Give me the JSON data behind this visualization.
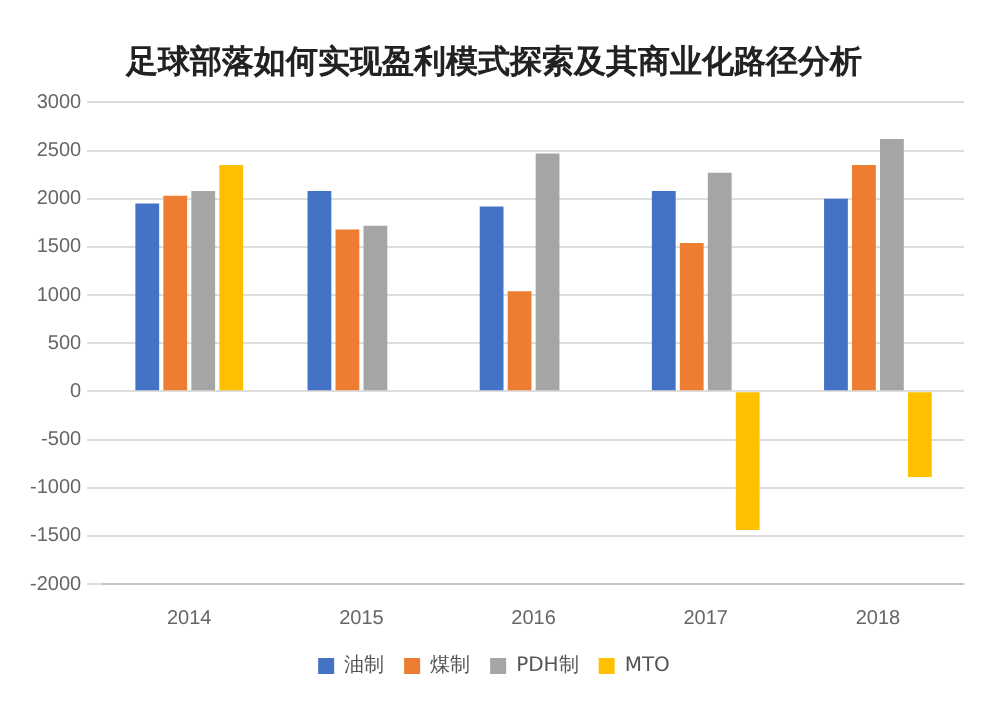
{
  "chart_data": {
    "type": "bar",
    "title": "足球部落如何实现盈利模式探索及其商业化路径分析",
    "categories": [
      "2014",
      "2015",
      "2016",
      "2017",
      "2018"
    ],
    "series": [
      {
        "name": "油制",
        "color": "#4472c4",
        "values": [
          1950,
          2080,
          1920,
          2080,
          2000
        ]
      },
      {
        "name": "煤制",
        "color": "#ed7d31",
        "values": [
          2030,
          1680,
          1040,
          1540,
          2350
        ]
      },
      {
        "name": "PDH制",
        "color": "#a5a5a5",
        "values": [
          2080,
          1720,
          2470,
          2270,
          2620
        ]
      },
      {
        "name": "MTO",
        "color": "#ffc000",
        "values": [
          2350,
          null,
          null,
          -1440,
          -890
        ]
      }
    ],
    "ylim": [
      -2000,
      3000
    ],
    "yticks": [
      -2000,
      -1500,
      -1000,
      -500,
      0,
      500,
      1000,
      1500,
      2000,
      2500,
      3000
    ],
    "grid": "y",
    "legend": "bottom"
  }
}
